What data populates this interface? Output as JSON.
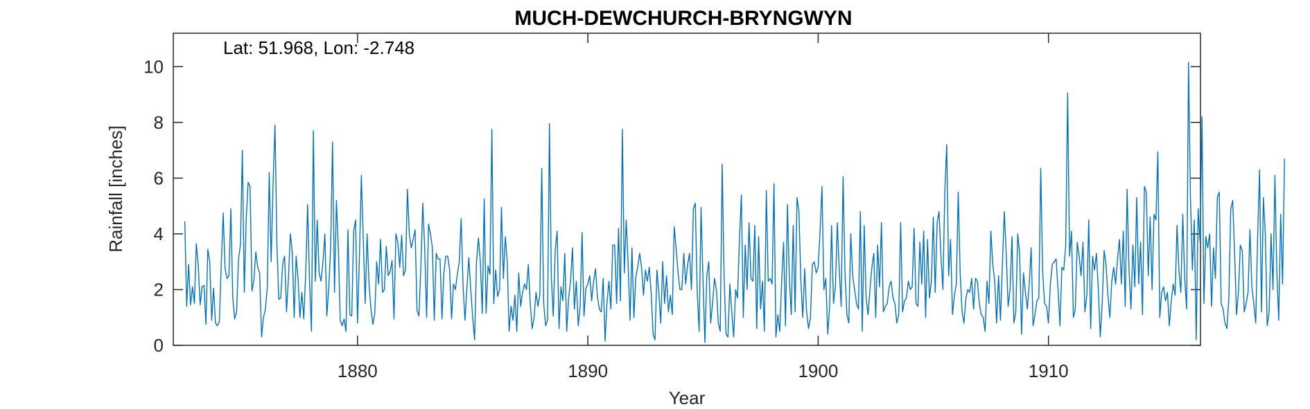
{
  "chart_data": {
    "type": "line",
    "title": "MUCH-DEWCHURCH-BRYNGWYN",
    "annotation": "Lat: 51.968, Lon: -2.748",
    "xlabel": "Year",
    "ylabel": "Rainfall [inches]",
    "xlim": [
      1872.0,
      1916.6
    ],
    "ylim": [
      0,
      11.2
    ],
    "x_ticks": [
      1880,
      1890,
      1900,
      1910
    ],
    "y_ticks": [
      0,
      2,
      4,
      6,
      8,
      10
    ],
    "grid": false,
    "line_color": "#0072BD",
    "series": [
      {
        "x_start": 1872.5,
        "x_step": 0.08333,
        "values": [
          4.45,
          1.4,
          2.9,
          1.45,
          2.1,
          1.5,
          3.65,
          2.9,
          1.45,
          2.1,
          2.15,
          0.75,
          3.45,
          3.0,
          0.9,
          2.05,
          0.8,
          0.7,
          0.85,
          2.9,
          4.75,
          2.75,
          2.4,
          2.5,
          4.9,
          1.7,
          0.95,
          1.2,
          3.1,
          3.6,
          7.0,
          1.9,
          4.5,
          5.85,
          5.7,
          1.95,
          2.35,
          3.35,
          2.8,
          2.6,
          0.3,
          1.0,
          1.3,
          2.1,
          6.2,
          3.0,
          5.8,
          7.9,
          3.6,
          1.65,
          1.7,
          2.9,
          3.2,
          1.2,
          2.4,
          4.0,
          3.35,
          1.0,
          3.2,
          2.4,
          1.0,
          1.9,
          0.95,
          2.6,
          5.05,
          2.3,
          0.5,
          7.7,
          2.3,
          4.5,
          2.6,
          2.3,
          3.0,
          4.0,
          1.05,
          2.05,
          3.5,
          7.3,
          1.9,
          5.2,
          3.5,
          0.9,
          0.7,
          0.95,
          0.5,
          4.15,
          1.1,
          1.05,
          4.1,
          4.5,
          0.8,
          3.2,
          6.1,
          3.8,
          1.5,
          4.0,
          2.2,
          1.3,
          0.75,
          1.15,
          3.0,
          2.2,
          3.8,
          1.9,
          2.0,
          3.55,
          2.5,
          2.65,
          3.05,
          0.95,
          4.0,
          3.7,
          2.8,
          3.95,
          2.5,
          2.7,
          5.6,
          4.0,
          3.5,
          3.8,
          4.15,
          1.25,
          1.05,
          2.8,
          5.1,
          3.5,
          1.0,
          4.35,
          4.0,
          3.5,
          0.9,
          3.3,
          3.1,
          3.1,
          0.95,
          2.6,
          3.2,
          3.2,
          2.7,
          0.95,
          2.2,
          2.0,
          2.55,
          3.0,
          4.55,
          2.1,
          0.9,
          2.05,
          3.15,
          2.0,
          1.0,
          0.2,
          3.0,
          3.85,
          3.0,
          1.15,
          5.25,
          1.15,
          2.85,
          2.55,
          7.75,
          1.5,
          2.7,
          1.75,
          2.0,
          4.95,
          2.4,
          3.9,
          3.0,
          0.5,
          1.4,
          0.9,
          1.8,
          0.5,
          2.6,
          1.4,
          1.9,
          2.2,
          2.0,
          2.9,
          1.5,
          0.6,
          1.0,
          1.9,
          1.4,
          1.8,
          6.35,
          1.5,
          0.7,
          0.9,
          7.95,
          2.4,
          1.05,
          3.4,
          4.1,
          0.6,
          2.1,
          1.6,
          3.3,
          0.5,
          1.7,
          2.3,
          3.5,
          1.3,
          2.3,
          0.7,
          1.4,
          4.05,
          1.05,
          2.05,
          2.2,
          2.5,
          1.6,
          2.3,
          2.75,
          1.75,
          1.3,
          1.2,
          2.4,
          0.15,
          1.55,
          2.3,
          1.3,
          3.6,
          3.6,
          1.5,
          4.2,
          1.6,
          7.75,
          2.6,
          4.5,
          2.9,
          0.9,
          3.5,
          1.0,
          2.45,
          2.8,
          3.3,
          2.8,
          1.8,
          2.7,
          2.3,
          2.8,
          1.9,
          0.4,
          0.2,
          2.7,
          1.9,
          0.8,
          3.0,
          1.5,
          2.5,
          1.2,
          1.8,
          1.1,
          4.25,
          3.5,
          2.6,
          2.0,
          2.0,
          3.3,
          2.2,
          2.9,
          3.3,
          2.0,
          4.9,
          5.1,
          1.9,
          0.5,
          4.95,
          2.35,
          0.1,
          2.5,
          3.0,
          0.8,
          1.5,
          2.4,
          2.0,
          0.8,
          0.5,
          6.5,
          2.5,
          0.4,
          0.3,
          2.2,
          1.2,
          0.3,
          2.0,
          1.7,
          3.8,
          5.4,
          1.0,
          3.6,
          2.0,
          4.4,
          2.4,
          2.3,
          4.3,
          0.6,
          3.9,
          1.3,
          2.3,
          0.5,
          5.55,
          2.3,
          2.4,
          2.2,
          5.8,
          0.3,
          1.1,
          0.5,
          2.3,
          3.7,
          0.7,
          5.05,
          2.4,
          1.1,
          4.3,
          1.2,
          5.3,
          4.8,
          2.3,
          1.0,
          2.75,
          1.2,
          0.6,
          1.0,
          2.9,
          3.0,
          2.6,
          2.8,
          4.1,
          5.7,
          2.0,
          2.4,
          0.4,
          1.4,
          4.3,
          1.5,
          2.1,
          4.4,
          2.7,
          1.4,
          6.05,
          2.6,
          1.1,
          0.8,
          4.0,
          2.5,
          2.0,
          1.5,
          1.3,
          4.8,
          0.5,
          4.3,
          1.7,
          1.1,
          2.0,
          2.8,
          3.3,
          1.0,
          3.6,
          2.1,
          4.4,
          1.2,
          1.4,
          1.5,
          2.1,
          2.3,
          1.7,
          1.5,
          0.8,
          1.1,
          4.4,
          1.2,
          1.6,
          1.7,
          2.3,
          2.0,
          2.1,
          4.2,
          1.5,
          1.4,
          3.7,
          2.2,
          4.1,
          1.0,
          3.8,
          1.7,
          2.3,
          4.6,
          1.9,
          4.4,
          4.8,
          3.2,
          2.0,
          5.5,
          7.2,
          2.5,
          3.8,
          1.1,
          1.8,
          2.2,
          5.5,
          2.6,
          1.2,
          0.8,
          1.7,
          2.0,
          1.9,
          2.4,
          1.3,
          2.4,
          2.3,
          1.5,
          1.1,
          1.0,
          0.5,
          2.3,
          1.5,
          4.1,
          2.9,
          2.3,
          0.8,
          2.5,
          0.9,
          2.9,
          4.8,
          3.3,
          1.4,
          2.0,
          3.9,
          0.8,
          1.2,
          4.0,
          3.3,
          0.4,
          2.6,
          1.9,
          1.3,
          2.2,
          3.5,
          0.7,
          1.1,
          1.6,
          1.7,
          6.35,
          2.6,
          1.5,
          1.4,
          0.8,
          2.2,
          2.9,
          3.0,
          3.1,
          2.0,
          0.7,
          2.8,
          2.7,
          3.6,
          9.05,
          3.2,
          4.1,
          1.0,
          1.3,
          3.7,
          3.2,
          2.5,
          3.7,
          1.2,
          1.8,
          4.5,
          0.6,
          3.2,
          2.7,
          3.3,
          2.0,
          0.3,
          1.5,
          3.4,
          2.9,
          1.8,
          1.0,
          2.3,
          2.8,
          2.2,
          3.1,
          3.8,
          2.2,
          4.1,
          1.4,
          5.6,
          2.7,
          1.3,
          3.6,
          2.1,
          5.3,
          2.2,
          3.7,
          1.1,
          5.7,
          5.5,
          2.5,
          4.6,
          2.0,
          4.7,
          4.5,
          6.95,
          1.0,
          1.9,
          2.1,
          1.6,
          1.9,
          0.7,
          1.6,
          2.2,
          1.8,
          4.3,
          2.7,
          1.9,
          4.7,
          2.4,
          1.3,
          10.15,
          5.3,
          2.7,
          4.5,
          0.2,
          4.9,
          3.7,
          8.2,
          1.5,
          3.9,
          3.5,
          4.0,
          1.4,
          3.5,
          2.4,
          5.3,
          5.5,
          1.5,
          1.3,
          0.8,
          0.6,
          1.7,
          4.9,
          5.2,
          3.3,
          1.1,
          1.9,
          3.6,
          3.4,
          1.2,
          1.5,
          1.9,
          4.15,
          2.1,
          1.5,
          0.8,
          3.9,
          6.3,
          1.2,
          5.3,
          4.0,
          0.7,
          1.2,
          4.0,
          2.0,
          6.1,
          2.6,
          0.9,
          4.7,
          2.2,
          6.7
        ]
      }
    ]
  }
}
